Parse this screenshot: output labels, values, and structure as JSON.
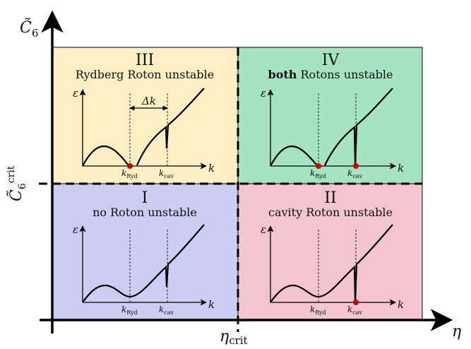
{
  "axes": {
    "y_symbol": "C̃",
    "y_subscript": "6",
    "x_symbol": "η",
    "y_threshold_symbol": "C̃",
    "y_threshold_sub": "6",
    "y_threshold_sup": "crit",
    "x_threshold_symbol": "η",
    "x_threshold_sub": "crit"
  },
  "quadrants": {
    "III": {
      "numeral": "III",
      "title": "Rydberg Roton unstable",
      "color": "#fdeec4"
    },
    "IV": {
      "numeral": "IV",
      "title_bold": "both",
      "title_rest": " Rotons unstable",
      "color": "#a6e4c1"
    },
    "I": {
      "numeral": "I",
      "title": "no Roton unstable",
      "color": "#cccdf2"
    },
    "II": {
      "numeral": "II",
      "title": "cavity Roton unstable",
      "color": "#f3c6cf"
    }
  },
  "inset": {
    "energy_symbol": "ε",
    "momentum_symbol": "k",
    "k_ryd_main": "k",
    "k_ryd_sub": "Ryd",
    "k_cav_main": "k",
    "k_cav_sub": "cav",
    "delta_k": "Δk"
  },
  "colors": {
    "instability_marker": "#cc0000",
    "axis": "#000000"
  }
}
